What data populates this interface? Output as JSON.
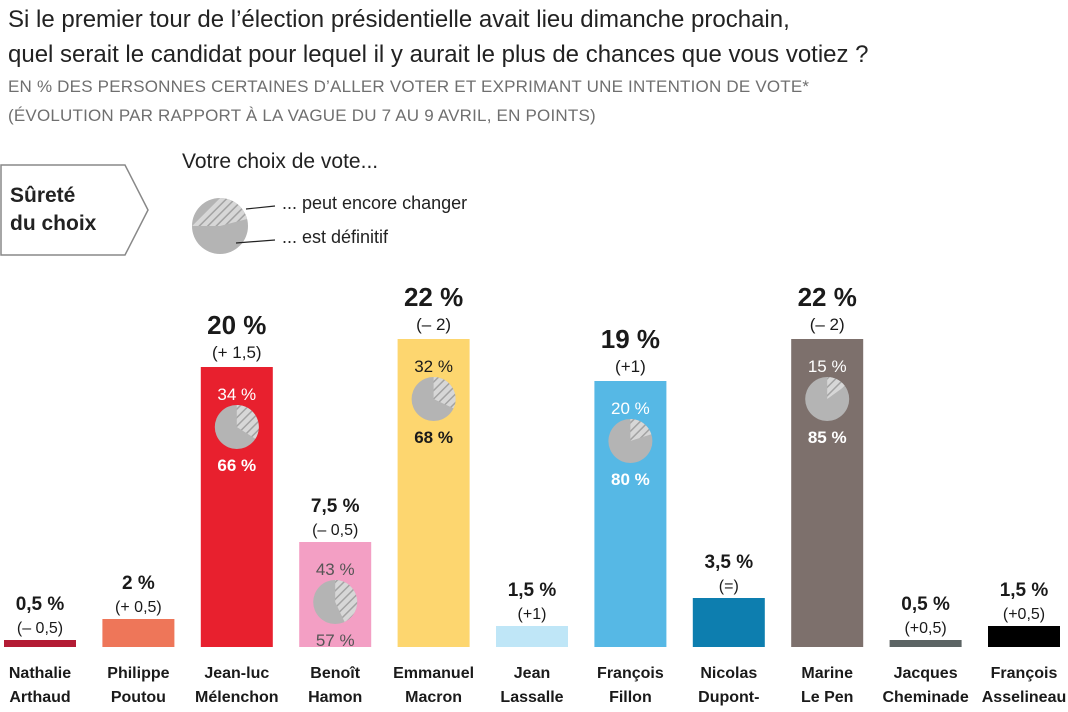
{
  "title_line1": "Si le premier tour de l’élection présidentielle avait lieu dimanche prochain,",
  "title_line2": "quel serait le candidat pour lequel il y aurait le plus de chances que vous votiez ?",
  "subtitle_line1": "EN % DES PERSONNES CERTAINES D’ALLER VOTER ET EXPRIMANT UNE INTENTION DE VOTE*",
  "subtitle_line2": "(ÉVOLUTION PAR RAPPORT À LA VAGUE DU 7 AU 9 AVRIL, EN POINTS)",
  "surete_line1": "Sûreté",
  "surete_line2": "du choix",
  "legend_title": "Votre choix de vote...",
  "legend_changer": "... peut encore changer",
  "legend_definitif": "... est définitif",
  "chart_data": {
    "type": "bar",
    "categories": [
      [
        "Nathalie",
        "Arthaud"
      ],
      [
        "Philippe",
        "Poutou"
      ],
      [
        "Jean-luc",
        "Mélenchon"
      ],
      [
        "Benoît",
        "Hamon"
      ],
      [
        "Emmanuel",
        "Macron"
      ],
      [
        "Jean",
        "Lassalle"
      ],
      [
        "François",
        "Fillon"
      ],
      [
        "Nicolas",
        "Dupont-"
      ],
      [
        "Marine",
        "Le Pen"
      ],
      [
        "Jacques",
        "Cheminade"
      ],
      [
        "François",
        "Asselineau"
      ]
    ],
    "values": [
      0.5,
      2,
      20,
      7.5,
      22,
      1.5,
      19,
      3.5,
      22,
      0.5,
      1.5
    ],
    "value_labels": [
      "0,5 %",
      "2 %",
      "20 %",
      "7,5 %",
      "22 %",
      "1,5 %",
      "19 %",
      "3,5 %",
      "22 %",
      "0,5 %",
      "1,5 %"
    ],
    "changes": [
      "(– 0,5)",
      "(+ 0,5)",
      "(+ 1,5)",
      "(– 0,5)",
      "(– 2)",
      "(+1)",
      "(+1)",
      "(=)",
      "(– 2)",
      "(+0,5)",
      "(+0,5)"
    ],
    "colors": [
      "#b31b34",
      "#ee7659",
      "#e8202e",
      "#f39fc4",
      "#fdd66f",
      "#bfe6f7",
      "#56b8e5",
      "#0d7eaf",
      "#7d706c",
      "#5c6464",
      "#000000"
    ],
    "choice_surety": [
      null,
      null,
      {
        "changer": 34,
        "definitif": 66,
        "changer_label": "34 %",
        "definitif_label": "66 %"
      },
      {
        "changer": 43,
        "definitif": 57,
        "changer_label": "43 %",
        "definitif_label": "57 %"
      },
      {
        "changer": 32,
        "definitif": 68,
        "changer_label": "32 %",
        "definitif_label": "68 %"
      },
      null,
      {
        "changer": 20,
        "definitif": 80,
        "changer_label": "20 %",
        "definitif_label": "80 %"
      },
      null,
      {
        "changer": 15,
        "definitif": 85,
        "changer_label": "15 %",
        "definitif_label": "85 %"
      },
      null,
      null
    ]
  }
}
